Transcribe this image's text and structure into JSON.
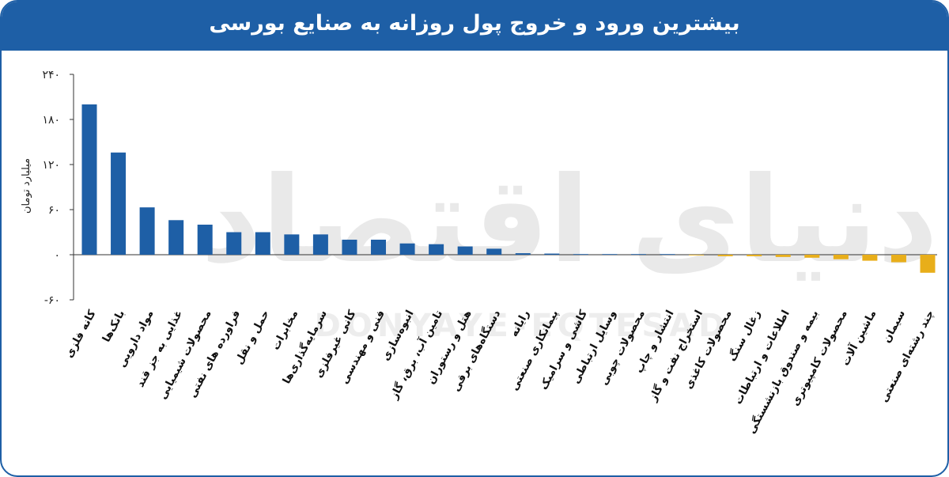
{
  "title": "بیشترین ورود و خروج پول روزانه به صنایع بورسی",
  "watermark": {
    "main": "دنیای اقتصاد",
    "sub": "DONYAYE-EQTESAD"
  },
  "colors": {
    "positive": "#1e5fa6",
    "negative": "#e8ae1a",
    "header": "#1e5fa6"
  },
  "chart_data": {
    "type": "bar",
    "title": "بیشترین ورود و خروج پول روزانه به صنایع بورسی",
    "ylabel": "میلیارد تومان",
    "xlabel": "",
    "ylim": [
      -60,
      240
    ],
    "yticks": [
      240,
      180,
      120,
      60,
      0,
      -60
    ],
    "ytick_labels": [
      "۲۴۰",
      "۱۸۰",
      "۱۲۰",
      "۶۰",
      "۰",
      "-۶۰"
    ],
    "grid": false,
    "categories": [
      "کانه فلزی",
      "بانک‌ها",
      "مواد دارویی",
      "غذایی به جز قند",
      "محصولات شیمیایی",
      "فراورده های نفتی",
      "حمل و نقل",
      "مخابرات",
      "سرمایه‌گذاری‌ها",
      "کانی غیرفلزی",
      "فنی و مهندسی",
      "انبوه‌سازی",
      "تامین آب، برق، گاز",
      "هتل و رستوران",
      "دستگاه‌های برقی",
      "رایانه",
      "پیمانکاری صنعتی",
      "کاشی و سرامیک",
      "وسایل ارتباطی",
      "محصولات چوبی",
      "انتشار و چاپ",
      "استخراج نفت و گاز",
      "محصولات کاغذی",
      "زغال سنگ",
      "اطلاعات و ارتباطات",
      "بیمه و صندوق بازنشستگی",
      "محصولات کامپیوتری",
      "ماشین آلات",
      "سیمان",
      "چند رشته‌ای صنعتی"
    ],
    "values": [
      200,
      136,
      63,
      46,
      40,
      30,
      30,
      27,
      27,
      20,
      20,
      15,
      14,
      11,
      8,
      2,
      1.5,
      0.5,
      0.3,
      0.2,
      0,
      -0.5,
      -2,
      -2,
      -3,
      -4,
      -6,
      -8,
      -10,
      -24
    ]
  }
}
